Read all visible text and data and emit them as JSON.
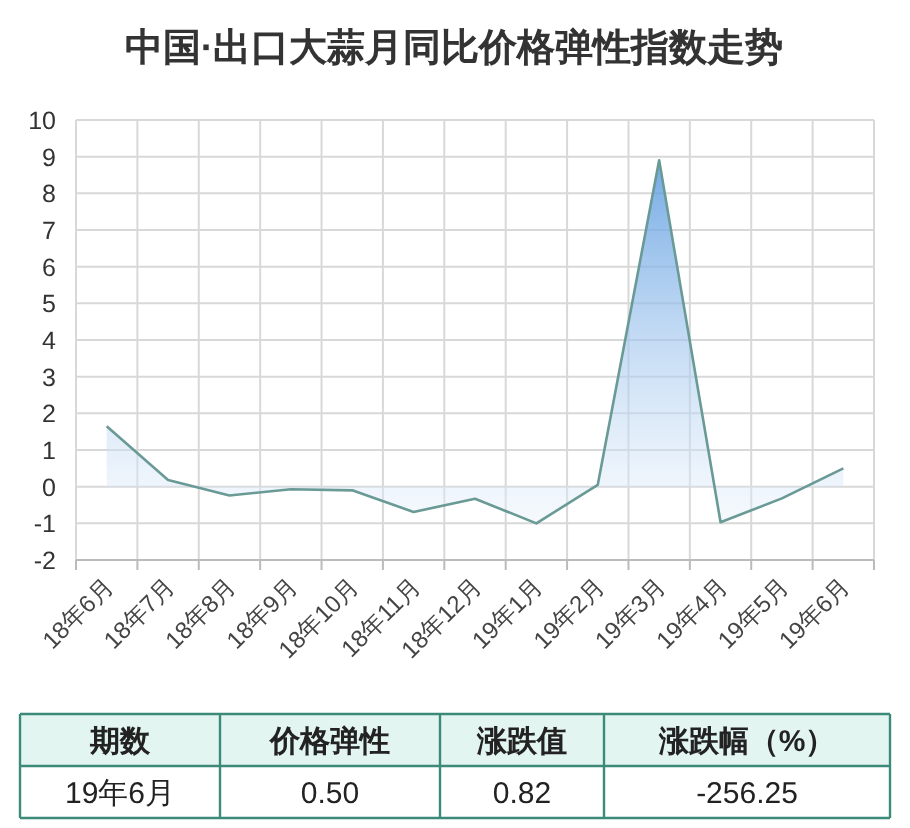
{
  "chart_data": [
    {
      "type": "area",
      "title": "中国·出口大蒜月同比价格弹性指数走势",
      "categories": [
        "18年6月",
        "18年7月",
        "18年8月",
        "18年9月",
        "18年10月",
        "18年11月",
        "18年12月",
        "19年1月",
        "19年2月",
        "19年3月",
        "19年4月",
        "19年5月",
        "19年6月"
      ],
      "series": [
        {
          "color": "#6a9a96",
          "values": [
            1.65,
            0.18,
            -0.24,
            -0.07,
            -0.1,
            -0.69,
            -0.33,
            -1.0,
            0.05,
            8.9,
            -0.97,
            -0.32,
            0.5
          ]
        }
      ],
      "ylim": [
        -2,
        10
      ],
      "yticks": [
        -2,
        -1,
        0,
        1,
        2,
        3,
        4,
        5,
        6,
        7,
        8,
        9,
        10
      ],
      "grid": true,
      "marker": "none"
    },
    {
      "type": "other",
      "annotations": [
        "期数",
        "价格弹性",
        "涨跌值",
        "涨跌幅（%）",
        "19年6月",
        "0.50",
        "0.82",
        "-256.25"
      ]
    }
  ]
}
